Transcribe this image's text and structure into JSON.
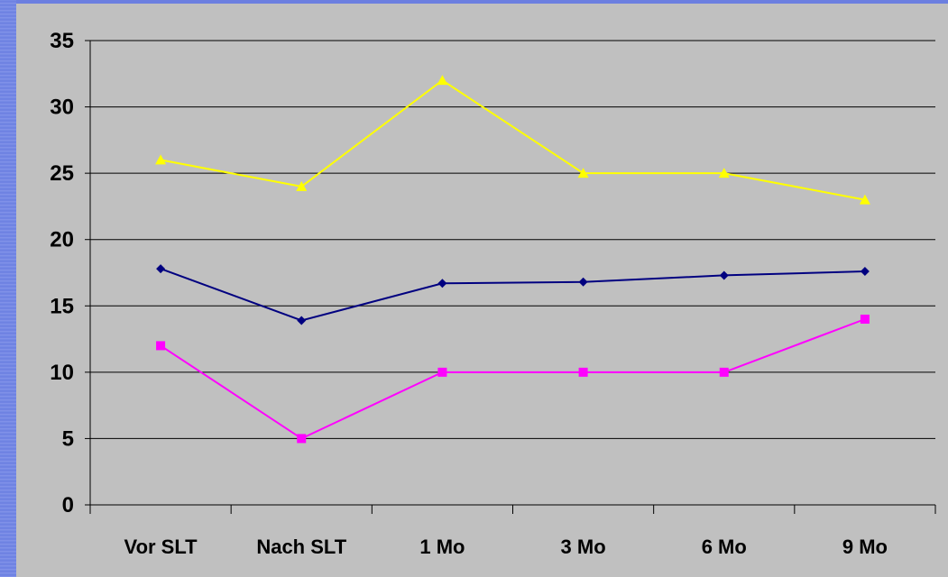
{
  "chart_data": {
    "type": "line",
    "categories": [
      "Vor SLT",
      "Nach SLT",
      "1 Mo",
      "3 Mo",
      "6 Mo",
      "9 Mo"
    ],
    "series": [
      {
        "values": [
          26,
          24,
          32,
          25,
          25,
          23
        ],
        "color": "#ffff00",
        "marker": "triangle"
      },
      {
        "values": [
          17.8,
          13.9,
          16.7,
          16.8,
          17.3,
          17.6
        ],
        "color": "#000080",
        "marker": "diamond"
      },
      {
        "values": [
          12,
          5,
          10,
          10,
          10,
          14
        ],
        "color": "#ff00ff",
        "marker": "square"
      }
    ],
    "yticks": [
      "0",
      "5",
      "10",
      "15",
      "20",
      "25",
      "30",
      "35"
    ],
    "ylim": [
      0,
      35
    ],
    "grid": true,
    "title": "",
    "xlabel": "",
    "ylabel": ""
  }
}
